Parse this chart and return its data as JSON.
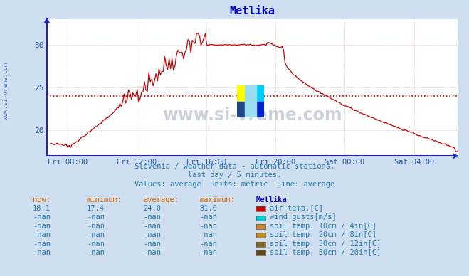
{
  "title": "Metlika",
  "title_color": "#0000cc",
  "bg_color": "#d0dff0",
  "plot_bg_color": "#ffffff",
  "line_color": "#cc0000",
  "avg_line_color": "#cc0000",
  "avg_line_value": 24.0,
  "grid_color": "#ffb0b0",
  "axis_color": "#2222bb",
  "xlabel_color": "#2255aa",
  "text_color": "#2277aa",
  "watermark_color": "#1a3060",
  "ylabel_min": 17,
  "ylabel_max": 33,
  "ytick_values": [
    20,
    25,
    30
  ],
  "xtick_labels": [
    "Fri 08:00",
    "Fri 12:00",
    "Fri 16:00",
    "Fri 20:00",
    "Sat 00:00",
    "Sat 04:00"
  ],
  "subtitle1": "Slovenia / weather data - automatic stations.",
  "subtitle2": "last day / 5 minutes.",
  "subtitle3": "Values: average  Units: metric  Line: average",
  "table_headers": [
    "now:",
    "minimum:",
    "average:",
    "maximum:",
    "Metlika"
  ],
  "table_rows": [
    [
      "18.1",
      "17.4",
      "24.0",
      "31.0",
      "#cc0000",
      "air temp.[C]"
    ],
    [
      "-nan",
      "-nan",
      "-nan",
      "-nan",
      "#00cccc",
      "wind gusts[m/s]"
    ],
    [
      "-nan",
      "-nan",
      "-nan",
      "-nan",
      "#cc8833",
      "soil temp. 10cm / 4in[C]"
    ],
    [
      "-nan",
      "-nan",
      "-nan",
      "-nan",
      "#bb8822",
      "soil temp. 20cm / 8in[C]"
    ],
    [
      "-nan",
      "-nan",
      "-nan",
      "-nan",
      "#886622",
      "soil temp. 30cm / 12in[C]"
    ],
    [
      "-nan",
      "-nan",
      "-nan",
      "-nan",
      "#664411",
      "soil temp. 50cm / 20in[C]"
    ]
  ],
  "watermark_text": "www.si-vreme.com",
  "ylabel_text": "www.si-vreme.com"
}
